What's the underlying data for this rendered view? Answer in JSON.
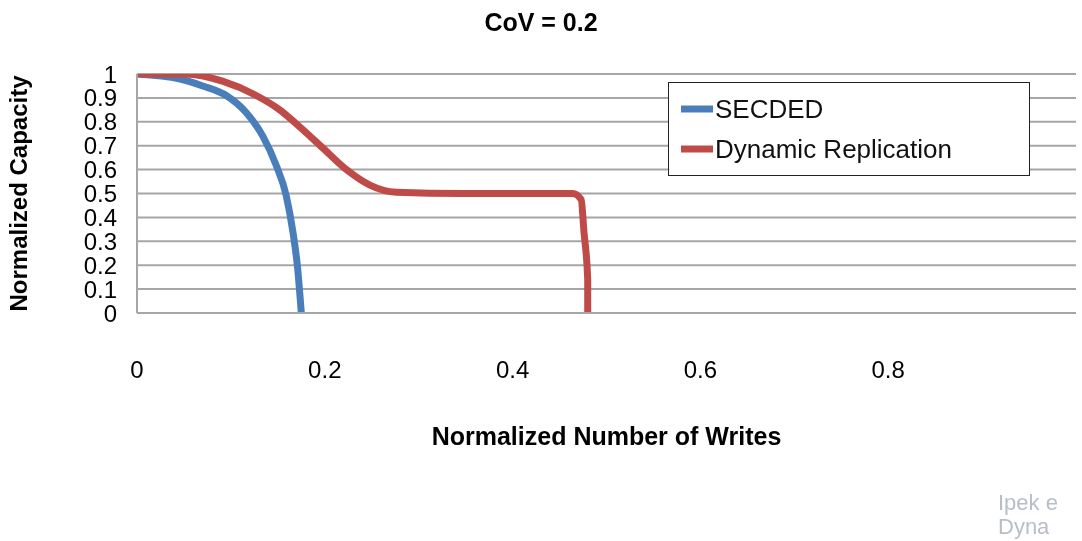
{
  "chart_data": {
    "type": "line",
    "title": "CoV = 0.2",
    "xlabel": "Normalized Number of Writes",
    "ylabel": "Normalized Capacity",
    "xlim": [
      0,
      1
    ],
    "xticks": [
      0,
      0.2,
      0.4,
      0.6,
      0.8
    ],
    "ylim": [
      0,
      1
    ],
    "yticks": [
      0,
      0.1,
      0.2,
      0.3,
      0.4,
      0.5,
      0.6,
      0.7,
      0.8,
      0.9,
      1
    ],
    "grid": "y",
    "legend": "top right",
    "marker": "none",
    "line_style": "solid",
    "series": [
      {
        "name": "SECDED",
        "color": "#4a7ebb",
        "x": [
          0,
          0.045,
          0.07,
          0.095,
          0.116,
          0.134,
          0.148,
          0.159,
          0.166,
          0.171,
          0.175
        ],
        "values": [
          1,
          0.98,
          0.95,
          0.91,
          0.84,
          0.74,
          0.62,
          0.49,
          0.34,
          0.19,
          0
        ]
      },
      {
        "name": "Dynamic Replication",
        "color": "#be4b48",
        "x": [
          0,
          0.052,
          0.091,
          0.127,
          0.152,
          0.173,
          0.198,
          0.223,
          0.248,
          0.276,
          0.347,
          0.464,
          0.473,
          0.476,
          0.48,
          0.48
        ],
        "values": [
          1,
          1,
          0.97,
          0.91,
          0.85,
          0.78,
          0.69,
          0.6,
          0.535,
          0.505,
          0.5,
          0.5,
          0.475,
          0.34,
          0.14,
          0
        ]
      }
    ],
    "annotations": [
      "Ipek e",
      "Dyna"
    ]
  }
}
